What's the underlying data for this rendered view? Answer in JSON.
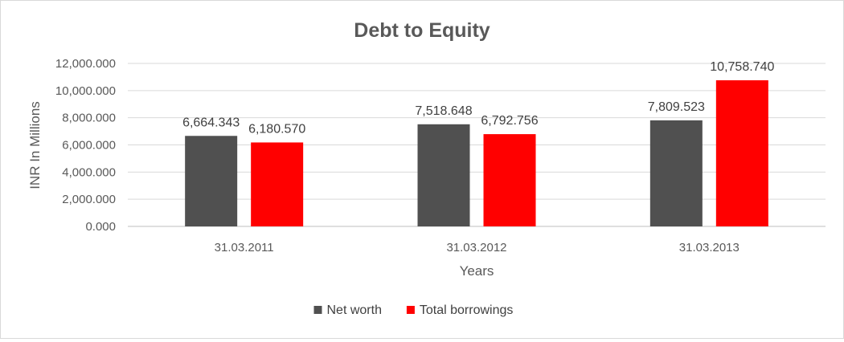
{
  "chart_data": {
    "type": "bar",
    "title": "Debt to Equity",
    "xlabel": "Years",
    "ylabel": "INR In Millions",
    "categories": [
      "31.03.2011",
      "31.03.2012",
      "31.03.2013"
    ],
    "series": [
      {
        "name": "Net worth",
        "color": "#505050",
        "values": [
          6664.343,
          7518.648,
          7809.523
        ],
        "labels": [
          "6,664.343",
          "7,518.648",
          "7,809.523"
        ]
      },
      {
        "name": "Total borrowings",
        "color": "#ff0000",
        "values": [
          6180.57,
          6792.756,
          10758.74
        ],
        "labels": [
          "6,180.570",
          "6,792.756",
          "10,758.740"
        ]
      }
    ],
    "ylim": [
      0,
      12000
    ],
    "yticks": [
      0,
      2000,
      4000,
      6000,
      8000,
      10000,
      12000
    ],
    "ytick_labels": [
      "0.000",
      "2,000.000",
      "4,000.000",
      "6,000.000",
      "8,000.000",
      "10,000.000",
      "12,000.000"
    ],
    "grid": true,
    "legend_position": "bottom"
  }
}
